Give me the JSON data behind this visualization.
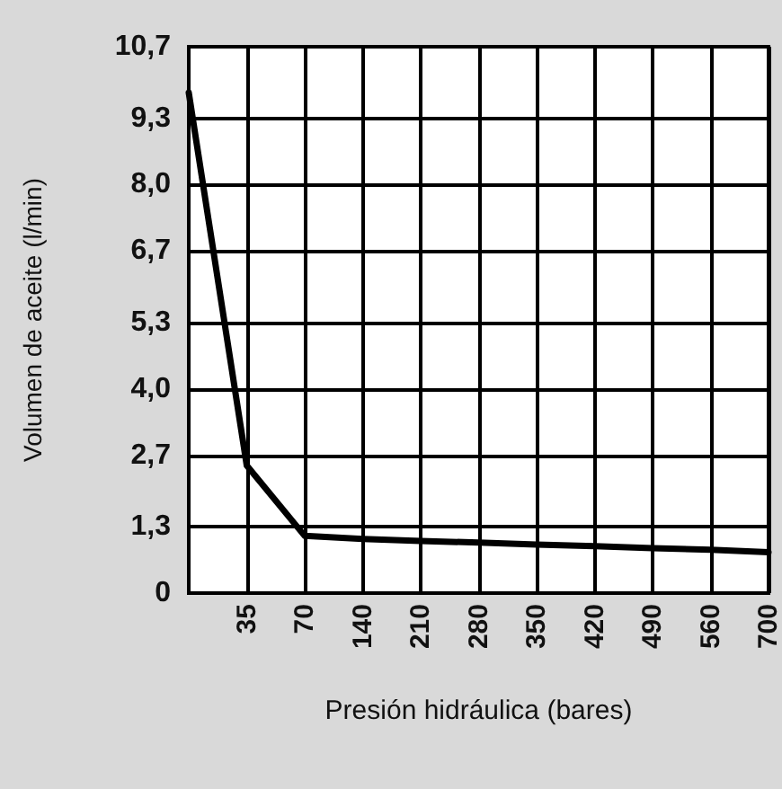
{
  "chart_data": {
    "type": "line",
    "xlabel": "Presión hidráulica (bares)",
    "ylabel": "Volumen de aceite (l/min)",
    "categories": [
      null,
      "35",
      "70",
      "140",
      "210",
      "280",
      "350",
      "420",
      "490",
      "560",
      "700"
    ],
    "series": [
      {
        "color": "#000000",
        "values": [
          9.8,
          2.5,
          1.12,
          1.06,
          1.02,
          0.99,
          0.95,
          0.92,
          0.88,
          0.85,
          0.8
        ]
      }
    ],
    "ylim": [
      0,
      10.7
    ],
    "yticks": [
      0,
      {
        "value": 1.3,
        "label": "1,3"
      },
      {
        "value": 2.7,
        "label": "2,7"
      },
      {
        "value": 4.0,
        "label": "4,0"
      },
      {
        "value": 5.3,
        "label": "5,3"
      },
      {
        "value": 6.7,
        "label": "6,7"
      },
      {
        "value": 8.0,
        "label": "8,0"
      },
      {
        "value": 9.3,
        "label": "9,3"
      },
      {
        "value": 10.7,
        "label": "10,7"
      }
    ],
    "grid": true,
    "marker": "none",
    "line_style": "solid"
  }
}
